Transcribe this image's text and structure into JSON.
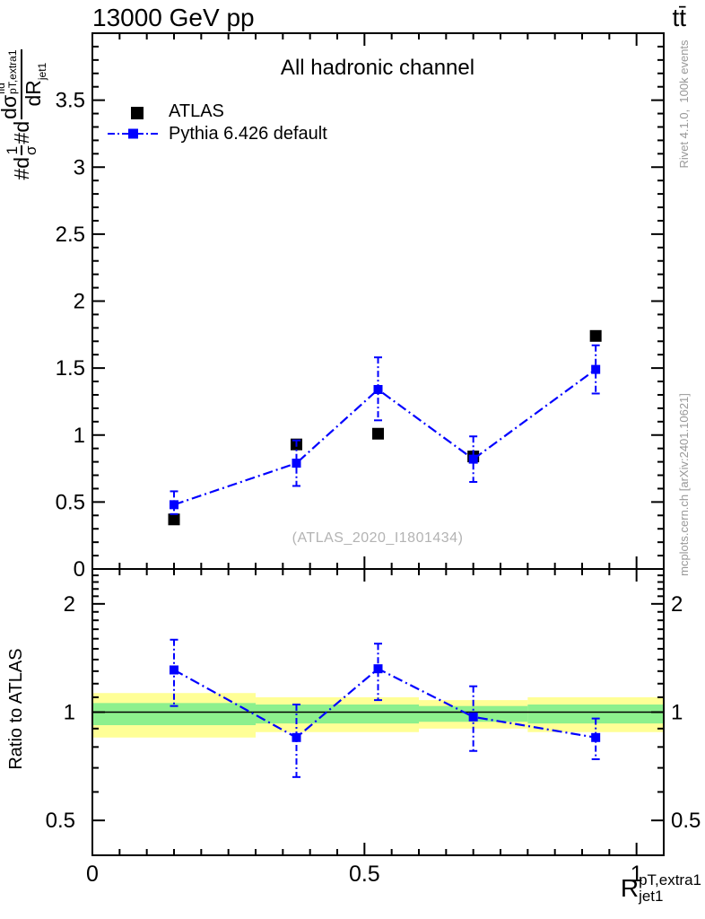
{
  "header": {
    "left": "13000 GeV pp",
    "right": "tt̄"
  },
  "title": "All hadronic channel",
  "watermark": "(ATLAS_2020_I1801434)",
  "side_notes": {
    "top_right": "Rivet 4.1.0,  100k events",
    "bottom_right": "mcplots.cern.ch [arXiv:2401.10621]"
  },
  "legend": {
    "items": [
      {
        "label": "ATLAS",
        "color": "#000000",
        "style": "filled-square"
      },
      {
        "label": "Pythia 6.426 default",
        "color": "#0000ff",
        "style": "dashdot-line-square"
      }
    ]
  },
  "axis_labels": {
    "y_main": {
      "prefix1": "#d",
      "frac1_num": "1",
      "frac1_den": "σ",
      "prefix2": "#d",
      "num_base": "dσ",
      "num_sup": "fid",
      "num_sub": "pT,extra1",
      "den_base": "dR",
      "den_sub": "jet1"
    },
    "y_ratio": "Ratio to ATLAS",
    "x": {
      "base": "R",
      "sup": "pT,extra1",
      "sub": "jet1"
    }
  },
  "chart_data": {
    "type": "scatter",
    "title": "All hadronic channel",
    "xlabel": "R^{pT,extra1}_{jet1}",
    "xlim": [
      0,
      1.05
    ],
    "x_ticks": {
      "major_values": [
        0,
        0.5,
        1
      ],
      "major_labels": [
        "0",
        "0.5",
        "1"
      ],
      "minor_step": 0.05
    },
    "main_panel": {
      "scale": "linear",
      "ylim": [
        0,
        4
      ],
      "y_ticks": {
        "major_values": [
          0,
          0.5,
          1,
          1.5,
          2,
          2.5,
          3,
          3.5
        ],
        "major_labels": [
          "0",
          "0.5",
          "1",
          "1.5",
          "2",
          "2.5",
          "3",
          "3.5"
        ],
        "minor_step": 0.1
      },
      "bin_edges": [
        0,
        0.3,
        0.45,
        0.6,
        0.8,
        1.05
      ],
      "series": [
        {
          "name": "ATLAS",
          "color": "#000000",
          "marker": "square",
          "marker_size": 13,
          "line": "none",
          "x": [
            0.15,
            0.375,
            0.525,
            0.7,
            0.925
          ],
          "y": [
            0.37,
            0.93,
            1.01,
            0.84,
            1.74
          ]
        },
        {
          "name": "Pythia 6.426 default",
          "color": "#0000ff",
          "marker": "square",
          "marker_size": 10,
          "line": "dashdot",
          "x": [
            0.15,
            0.375,
            0.525,
            0.7,
            0.925
          ],
          "y": [
            0.48,
            0.79,
            1.34,
            0.82,
            1.49
          ],
          "y_err_low": [
            0.41,
            0.62,
            1.11,
            0.65,
            1.31
          ],
          "y_err_high": [
            0.58,
            0.96,
            1.58,
            0.99,
            1.67
          ]
        }
      ]
    },
    "ratio_panel": {
      "scale": "log",
      "ylim": [
        0.4,
        2.5
      ],
      "y_ticks": {
        "major_values": [
          0.5,
          1,
          2
        ],
        "major_labels": [
          "0.5",
          "1",
          "2"
        ],
        "minor_values": [
          0.4,
          0.6,
          0.7,
          0.8,
          0.9,
          1.1,
          1.2,
          1.3,
          1.4,
          1.5,
          1.6,
          1.7,
          1.8,
          1.9,
          2.1,
          2.2,
          2.3,
          2.4,
          2.5
        ]
      },
      "reference_line": 1,
      "bands": {
        "edges": [
          0,
          0.3,
          0.45,
          0.6,
          0.8,
          1.05
        ],
        "yellow_low": [
          0.85,
          0.88,
          0.88,
          0.9,
          0.88
        ],
        "yellow_high": [
          1.13,
          1.1,
          1.1,
          1.08,
          1.1
        ],
        "green_low": [
          0.92,
          0.93,
          0.93,
          0.94,
          0.93
        ],
        "green_high": [
          1.06,
          1.05,
          1.05,
          1.04,
          1.05
        ],
        "yellow_color": "#ffff96",
        "green_color": "#8df08d"
      },
      "series": {
        "name": "Pythia 6.426 default / ATLAS",
        "color": "#0000ff",
        "marker": "square",
        "marker_size": 10,
        "line": "dashdot",
        "x": [
          0.15,
          0.375,
          0.525,
          0.7,
          0.925
        ],
        "y": [
          1.31,
          0.85,
          1.32,
          0.97,
          0.85
        ],
        "y_err_low": [
          1.04,
          0.66,
          1.08,
          0.78,
          0.74
        ],
        "y_err_high": [
          1.59,
          1.05,
          1.55,
          1.18,
          0.96
        ]
      }
    }
  }
}
